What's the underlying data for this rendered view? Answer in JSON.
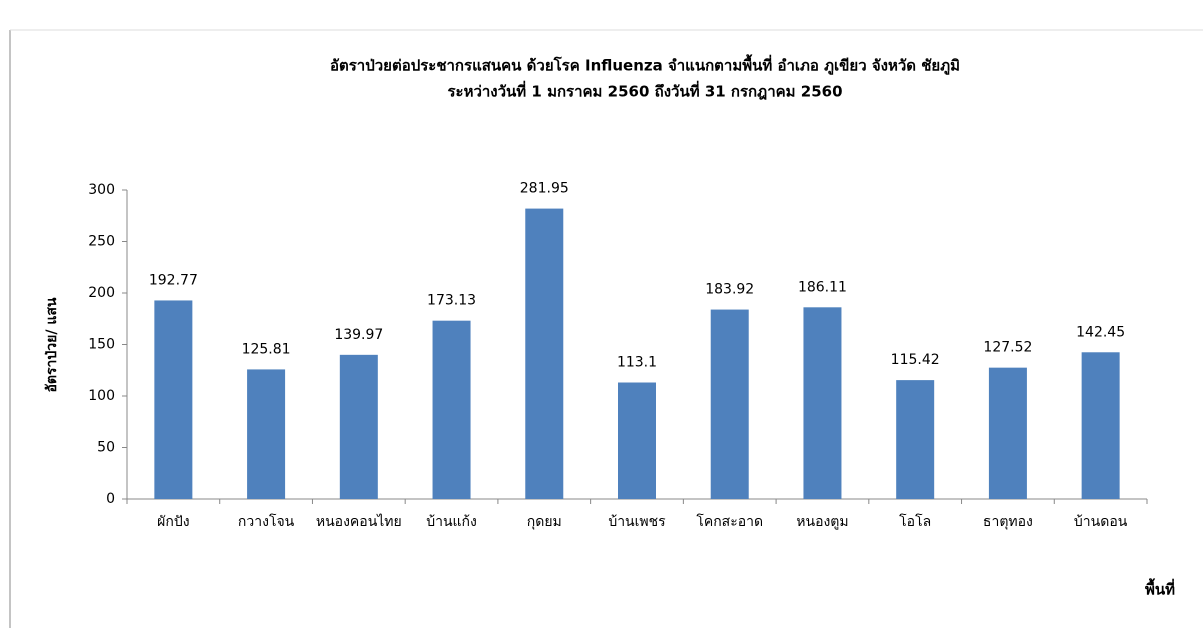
{
  "chart_data": {
    "type": "bar",
    "title": "อัตราป่วยต่อประชากรแสนคน  ด้วยโรค Influenza  จำแนกตามพื้นที่    อำเภอ  ภูเขียว จังหวัด ชัยภูมิ",
    "subtitle": "ระหว่างวันที่  1 มกราคม 2560  ถึงวันที่  31 กรกฎาคม 2560",
    "y_label": "อัตราป่วย/ แสน",
    "x_label": "พื้นที่",
    "categories": [
      "ผักปัง",
      "กวางโจน",
      "หนองคอนไทย",
      "บ้านแก้ง",
      "กุดยม",
      "บ้านเพชร",
      "โคกสะอาด",
      "หนองตูม",
      "โอโล",
      "ธาตุทอง",
      "บ้านดอน"
    ],
    "values": [
      192.77,
      125.81,
      139.97,
      173.13,
      281.95,
      113.1,
      183.92,
      186.11,
      115.42,
      127.52,
      142.45
    ],
    "color": "#4f81bd",
    "ylim": [
      0,
      300
    ],
    "yticks": [
      0,
      50,
      100,
      150,
      200,
      250,
      300
    ],
    "grid": false
  }
}
